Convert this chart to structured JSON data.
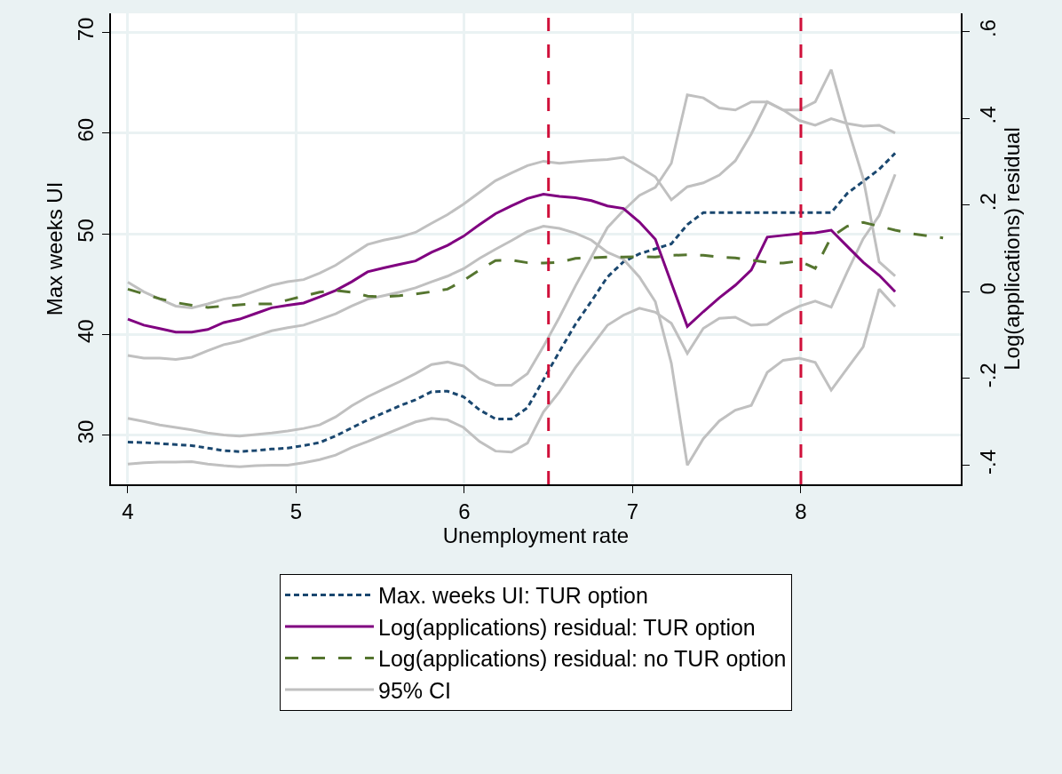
{
  "chart_data": {
    "type": "line",
    "xlabel": "Unemployment rate",
    "ylabel": "Max weeks UI",
    "y2label": "Log(applications) residual",
    "x": [
      4.0,
      4.095,
      4.19,
      4.285,
      4.38,
      4.475,
      4.57,
      4.665,
      4.76,
      4.855,
      4.95,
      5.045,
      5.14,
      5.235,
      5.33,
      5.425,
      5.52,
      5.615,
      5.71,
      5.805,
      5.9,
      5.995,
      6.09,
      6.185,
      6.28,
      6.375,
      6.47,
      6.565,
      6.66,
      6.755,
      6.85,
      6.945,
      7.04,
      7.135,
      7.23,
      7.325,
      7.42,
      7.515,
      7.61,
      7.705,
      7.8,
      7.895,
      7.99,
      8.085,
      8.18,
      8.275,
      8.37,
      8.465,
      8.56
    ],
    "xlim": [
      3.9,
      8.95
    ],
    "xticks": [
      4,
      5,
      6,
      7,
      8
    ],
    "ylim": [
      25.1,
      71.9
    ],
    "yticks": [
      30,
      40,
      50,
      60,
      70
    ],
    "y2lim": [
      -0.444,
      0.642
    ],
    "y2ticks": [
      {
        "value": -0.4,
        "label": "-.4"
      },
      {
        "value": -0.2,
        "label": "-.2"
      },
      {
        "value": 0,
        "label": "0"
      },
      {
        "value": 0.2,
        "label": ".2"
      },
      {
        "value": 0.4,
        "label": ".4"
      },
      {
        "value": 0.6,
        "label": ".6"
      }
    ],
    "grid": true,
    "legend": "bottom",
    "marker": "none",
    "series": [
      {
        "name": "Max. weeks UI: TUR option",
        "color": "#1a476f",
        "line_style": "dotted",
        "values": [
          29.3,
          29.25,
          29.15,
          29.05,
          28.95,
          28.7,
          28.45,
          28.35,
          28.45,
          28.6,
          28.7,
          28.95,
          29.25,
          29.9,
          30.7,
          31.5,
          32.2,
          32.9,
          33.5,
          34.3,
          34.35,
          33.8,
          32.5,
          31.6,
          31.6,
          32.7,
          35.5,
          38.3,
          41.0,
          43.3,
          45.7,
          47.2,
          48.0,
          48.5,
          49.0,
          50.9,
          52.1,
          52.1,
          52.1,
          52.1,
          52.1,
          52.1,
          52.1,
          52.1,
          52.1,
          54.0,
          55.2,
          56.4,
          58.0
        ]
      },
      {
        "name": "Log(applications) residual: TUR option",
        "color": "#800080",
        "line_style": "solid",
        "axis": "y2",
        "values": [
          -0.063,
          -0.077,
          -0.085,
          -0.093,
          -0.093,
          -0.087,
          -0.071,
          -0.063,
          -0.05,
          -0.037,
          -0.031,
          -0.026,
          -0.012,
          0.003,
          0.023,
          0.046,
          0.055,
          0.063,
          0.071,
          0.091,
          0.107,
          0.128,
          0.155,
          0.18,
          0.198,
          0.215,
          0.225,
          0.22,
          0.217,
          0.21,
          0.198,
          0.192,
          0.161,
          0.121,
          0.02,
          -0.08,
          -0.046,
          -0.014,
          0.015,
          0.05,
          0.126,
          0.13,
          0.134,
          0.136,
          0.142,
          0.105,
          0.068,
          0.038,
          0.0
        ]
      },
      {
        "name": "Log(applications) residual: no TUR option",
        "color": "#55752f",
        "line_style": "dashed",
        "axis": "y2",
        "x": [
          4.0,
          4.095,
          4.19,
          4.285,
          4.38,
          4.475,
          4.57,
          4.665,
          4.76,
          4.855,
          4.95,
          5.045,
          5.14,
          5.235,
          5.33,
          5.425,
          5.52,
          5.615,
          5.71,
          5.805,
          5.9,
          5.995,
          6.09,
          6.185,
          6.28,
          6.375,
          6.47,
          6.565,
          6.66,
          6.755,
          6.85,
          6.945,
          7.04,
          7.135,
          7.23,
          7.325,
          7.42,
          7.515,
          7.61,
          7.705,
          7.8,
          7.895,
          7.99,
          8.085,
          8.18,
          8.275,
          8.37,
          8.465,
          8.56,
          8.655,
          8.75,
          8.845
        ],
        "values": [
          0.006,
          -0.005,
          -0.016,
          -0.025,
          -0.031,
          -0.036,
          -0.033,
          -0.03,
          -0.028,
          -0.028,
          -0.019,
          -0.01,
          -0.001,
          0.003,
          -0.001,
          -0.01,
          -0.012,
          -0.009,
          -0.005,
          0.0,
          0.006,
          0.026,
          0.05,
          0.072,
          0.073,
          0.067,
          0.066,
          0.068,
          0.077,
          0.078,
          0.08,
          0.08,
          0.081,
          0.08,
          0.084,
          0.085,
          0.084,
          0.08,
          0.078,
          0.073,
          0.068,
          0.066,
          0.071,
          0.054,
          0.126,
          0.151,
          0.16,
          0.151,
          0.142,
          0.134,
          0.129,
          0.124
        ]
      },
      {
        "name": "95% CI",
        "color": "#c0c0c0",
        "line_style": "solid",
        "axis": "y2",
        "values": [
          0.022,
          0.0,
          -0.017,
          -0.033,
          -0.037,
          -0.028,
          -0.017,
          -0.011,
          0.002,
          0.015,
          0.023,
          0.028,
          0.043,
          0.061,
          0.085,
          0.109,
          0.119,
          0.126,
          0.137,
          0.158,
          0.178,
          0.202,
          0.229,
          0.256,
          0.274,
          0.291,
          0.301,
          0.296,
          0.3,
          0.303,
          0.305,
          0.31,
          0.288,
          0.265,
          0.212,
          0.242,
          0.251,
          0.269,
          0.302,
          0.364,
          0.438,
          0.419,
          0.395,
          0.384,
          0.399,
          0.388,
          0.382,
          0.384,
          0.366
        ]
      },
      {
        "color": "#c0c0c0",
        "line_style": "solid",
        "axis": "y2",
        "values": [
          -0.147,
          -0.153,
          -0.153,
          -0.156,
          -0.151,
          -0.136,
          -0.122,
          -0.114,
          -0.102,
          -0.09,
          -0.083,
          -0.077,
          -0.064,
          -0.051,
          -0.033,
          -0.017,
          -0.009,
          -0.001,
          0.009,
          0.023,
          0.036,
          0.053,
          0.077,
          0.098,
          0.118,
          0.139,
          0.151,
          0.146,
          0.135,
          0.119,
          0.091,
          0.075,
          0.034,
          -0.023,
          -0.165,
          -0.4,
          -0.339,
          -0.298,
          -0.273,
          -0.262,
          -0.186,
          -0.158,
          -0.153,
          -0.163,
          -0.227,
          -0.177,
          -0.127,
          0.006,
          -0.034
        ]
      },
      {
        "color": "#c0c0c0",
        "line_style": "solid",
        "values": [
          31.65,
          31.35,
          31.0,
          30.75,
          30.5,
          30.2,
          30.0,
          29.9,
          30.05,
          30.2,
          30.4,
          30.65,
          31.0,
          31.8,
          32.9,
          33.8,
          34.55,
          35.3,
          36.1,
          37.0,
          37.25,
          36.85,
          35.6,
          34.95,
          34.95,
          36.1,
          38.8,
          41.7,
          44.8,
          47.7,
          50.6,
          52.3,
          53.8,
          54.6,
          57.0,
          63.8,
          63.5,
          62.5,
          62.3,
          63.1,
          63.1,
          62.3,
          62.3,
          63.1,
          66.3,
          60.7,
          55.5,
          47.2,
          45.8
        ]
      },
      {
        "color": "#c0c0c0",
        "line_style": "solid",
        "values": [
          27.1,
          27.25,
          27.3,
          27.3,
          27.35,
          27.1,
          26.95,
          26.85,
          26.95,
          27.0,
          27.0,
          27.25,
          27.55,
          28.0,
          28.75,
          29.35,
          30.0,
          30.65,
          31.3,
          31.65,
          31.5,
          30.75,
          29.35,
          28.4,
          28.3,
          29.2,
          32.3,
          34.3,
          36.7,
          38.8,
          40.9,
          41.9,
          42.6,
          42.2,
          41.1,
          38.1,
          40.6,
          41.6,
          41.7,
          40.9,
          41.0,
          42.0,
          42.8,
          43.3,
          42.7,
          46.2,
          49.5,
          51.8,
          55.9
        ]
      }
    ],
    "ref_lines": [
      {
        "axis": "x",
        "value": 6.5,
        "color": "#d0103a",
        "line_style": "dashed"
      },
      {
        "axis": "x",
        "value": 8,
        "color": "#d0103a",
        "line_style": "dashed"
      }
    ]
  }
}
